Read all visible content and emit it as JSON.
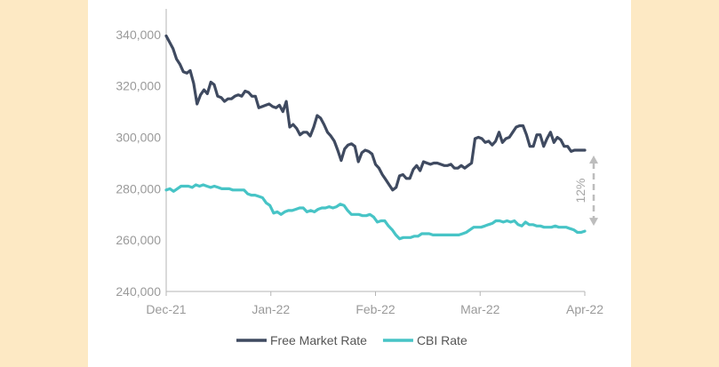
{
  "colors": {
    "background": "#ffffff",
    "side_panel": "#fde9c4",
    "axis": "#b5b5b5",
    "free_market": "#3f4a60",
    "cbi": "#47c4c6",
    "annotation": "#bdbdbd"
  },
  "chart_data": {
    "type": "line",
    "title": "",
    "xlabel": "",
    "ylabel": "",
    "grid": false,
    "legend_position": "bottom",
    "ylim": [
      240000,
      350000
    ],
    "y_ticks": [
      240000,
      260000,
      280000,
      300000,
      320000,
      340000
    ],
    "y_tick_labels": [
      "240,000",
      "260,000",
      "280,000",
      "300,000",
      "320,000",
      "340,000"
    ],
    "x_ticks": [
      "Dec-21",
      "Jan-22",
      "Feb-22",
      "Mar-22",
      "Apr-22"
    ],
    "series": [
      {
        "name": "Free Market Rate",
        "values": [
          339500,
          337000,
          334500,
          330500,
          328500,
          325500,
          325000,
          326000,
          321000,
          313000,
          316500,
          318500,
          317000,
          321500,
          320500,
          316000,
          315500,
          314000,
          315000,
          315000,
          316000,
          316500,
          316000,
          318000,
          317500,
          316000,
          316000,
          311500,
          312000,
          312500,
          313000,
          312000,
          311500,
          312500,
          310000,
          314000,
          304000,
          305000,
          303500,
          301000,
          302000,
          302000,
          300500,
          304000,
          308500,
          307500,
          305000,
          302000,
          300500,
          298500,
          295000,
          291000,
          295500,
          297000,
          297500,
          296500,
          290500,
          294000,
          295000,
          294500,
          293500,
          289500,
          288000,
          285500,
          283500,
          281500,
          279500,
          280500,
          285000,
          285500,
          284000,
          284000,
          287500,
          289000,
          287000,
          290500,
          290000,
          289500,
          290000,
          290000,
          289500,
          289000,
          289000,
          289500,
          288000,
          288000,
          289000,
          288000,
          289000,
          290000,
          299500,
          300000,
          299500,
          298000,
          298500,
          297000,
          298500,
          302000,
          298000,
          299500,
          300000,
          302000,
          304000,
          304500,
          304500,
          301000,
          296500,
          296500,
          301000,
          301000,
          296500,
          299500,
          302000,
          298000,
          300000,
          299000,
          296500,
          296500,
          294500,
          295000,
          295000,
          295000,
          295000
        ],
        "color": "#3f4a60"
      },
      {
        "name": "CBI Rate",
        "values": [
          279500,
          280000,
          279000,
          280000,
          281000,
          281000,
          281000,
          280500,
          281500,
          281000,
          281500,
          281000,
          280500,
          281000,
          280500,
          280000,
          280000,
          280000,
          279500,
          279500,
          279500,
          279500,
          278000,
          277500,
          277500,
          277000,
          276500,
          274500,
          273500,
          270500,
          271000,
          270000,
          271000,
          271500,
          271500,
          272000,
          272500,
          272500,
          271000,
          271500,
          271000,
          272000,
          272500,
          272500,
          273000,
          272500,
          273000,
          274000,
          273500,
          271500,
          270000,
          270000,
          270000,
          269500,
          269500,
          270000,
          269000,
          267000,
          267500,
          267500,
          265500,
          264000,
          262000,
          260500,
          261000,
          261000,
          261000,
          261500,
          261500,
          262500,
          262500,
          262500,
          262000,
          262000,
          262000,
          262000,
          262000,
          262000,
          262000,
          262000,
          262500,
          263000,
          264000,
          265000,
          265000,
          265000,
          265500,
          266000,
          266500,
          267500,
          267500,
          267000,
          267500,
          267000,
          267500,
          266000,
          265500,
          267000,
          266000,
          266000,
          265500,
          265500,
          265000,
          265000,
          265000,
          265500,
          265000,
          265000,
          265000,
          264500,
          264000,
          263000,
          263000,
          263500
        ],
        "color": "#47c4c6"
      }
    ],
    "annotation": {
      "text": "12%",
      "from_value": 263500,
      "to_value": 295000
    }
  }
}
